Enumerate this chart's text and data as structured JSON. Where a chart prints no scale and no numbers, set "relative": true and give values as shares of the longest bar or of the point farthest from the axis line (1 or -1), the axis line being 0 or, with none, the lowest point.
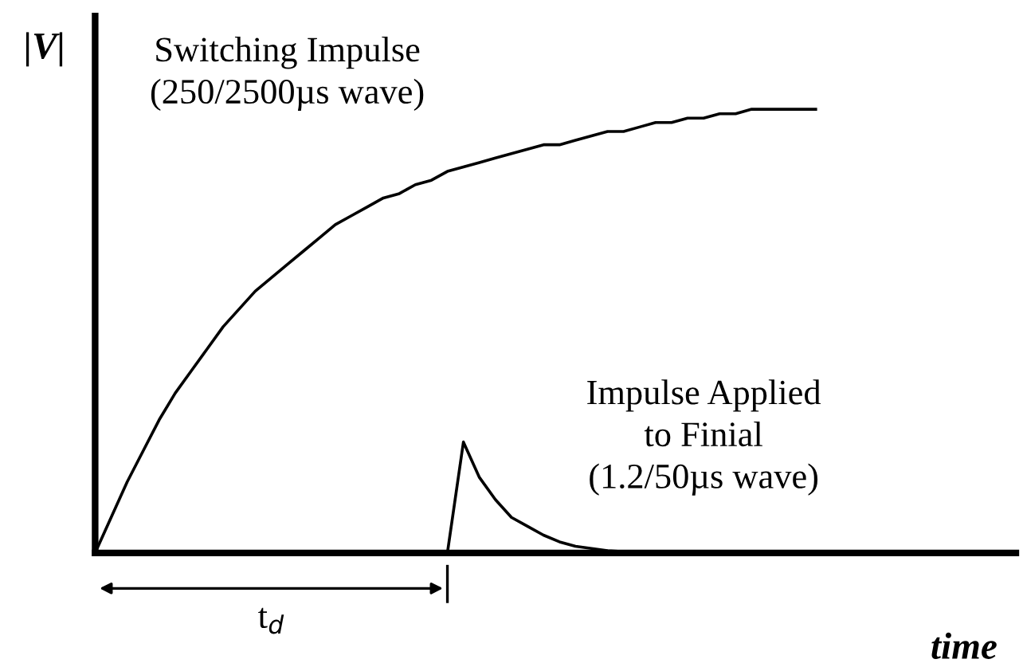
{
  "chart_data": {
    "type": "line",
    "relative": true,
    "xlabel": "time",
    "ylabel": "|V|",
    "categories": [
      null,
      null,
      null,
      null,
      null,
      null,
      null,
      null,
      null,
      null,
      null,
      null,
      null,
      null,
      null,
      null,
      null,
      null,
      null,
      null,
      null,
      null,
      null,
      null,
      null,
      null,
      null,
      null,
      null,
      null,
      null,
      null,
      null,
      null,
      null,
      null,
      null,
      null,
      null,
      null,
      null,
      null,
      null,
      null,
      null,
      null
    ],
    "series": [
      {
        "color": "#000000",
        "values": [
          0,
          0.08,
          0.16,
          0.23,
          0.3,
          0.36,
          0.41,
          0.46,
          0.51,
          0.55,
          0.59,
          0.62,
          0.65,
          0.68,
          0.71,
          0.74,
          0.76,
          0.78,
          0.8,
          0.81,
          0.83,
          0.84,
          0.86,
          0.87,
          0.88,
          0.89,
          0.9,
          0.91,
          0.92,
          0.92,
          0.93,
          0.94,
          0.95,
          0.95,
          0.96,
          0.97,
          0.97,
          0.98,
          0.98,
          0.99,
          0.99,
          1,
          1,
          1,
          1,
          1
        ]
      },
      {
        "color": "#000000",
        "values": [
          null,
          null,
          null,
          null,
          null,
          null,
          null,
          null,
          null,
          null,
          null,
          null,
          null,
          null,
          null,
          null,
          null,
          null,
          null,
          null,
          null,
          null,
          0,
          0.25,
          0.17,
          0.12,
          0.08,
          0.06,
          0.04,
          0.025,
          0.015,
          0.01,
          0.005,
          0.003,
          null,
          null,
          null,
          null,
          null,
          null,
          null,
          null,
          null,
          null,
          null,
          null
        ]
      }
    ],
    "annotations": [
      "Switching Impulse\n(250/2500µs wave)",
      "Impulse Applied\nto Finial\n(1.2/50µs wave)",
      "t$_{d}$"
    ],
    "legend": false,
    "grid": false,
    "marker": "none",
    "line_style": "solid"
  }
}
